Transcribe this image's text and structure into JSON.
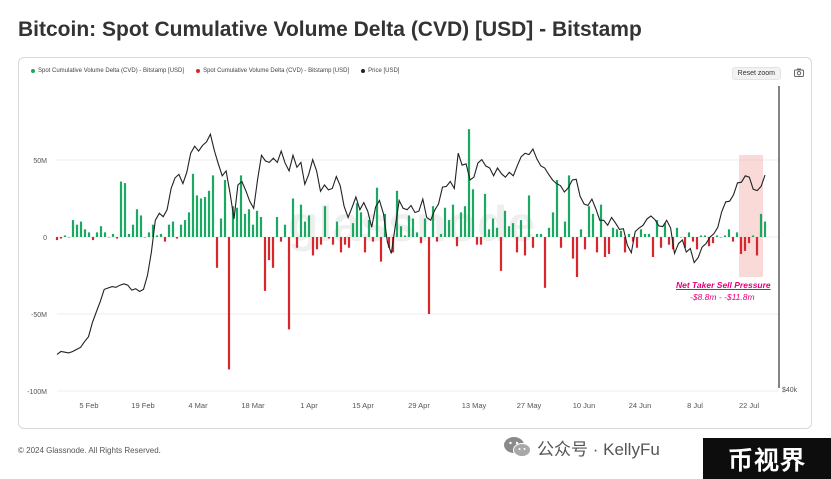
{
  "page": {
    "title": "Bitcoin: Spot Cumulative Volume Delta (CVD) [USD] - Bitstamp",
    "footer": "© 2024 Glassnode. All Rights Reserved.",
    "reset_zoom": "Reset zoom",
    "watermark": "glassnode",
    "wechat_text": "公众号 · KellyFu",
    "brand_text": "币视界"
  },
  "colors": {
    "positive": "#1aa863",
    "negative": "#d7262c",
    "price": "#222222",
    "highlight": "#f6b9b9",
    "annotation": "#e6007e"
  },
  "chart_data": {
    "type": "bar",
    "title": "Bitcoin: Spot Cumulative Volume Delta (CVD) [USD] - Bitstamp",
    "legend": [
      {
        "name": "Spot Cumulative Volume Delta (CVD) - Bitstamp [USD]",
        "color": "#1aa863"
      },
      {
        "name": "Spot Cumulative Volume Delta (CVD) - Bitstamp [USD]",
        "color": "#d7262c"
      },
      {
        "name": "Price [USD]",
        "color": "#222222"
      }
    ],
    "legend_position": "top-left",
    "x_ticks": [
      "5 Feb",
      "19 Feb",
      "4 Mar",
      "18 Mar",
      "1 Apr",
      "15 Apr",
      "29 Apr",
      "13 May",
      "27 May",
      "10 Jun",
      "24 Jun",
      "8 Jul",
      "22 Jul"
    ],
    "y_ticks": [
      "50M",
      "0",
      "-50M",
      "-100M"
    ],
    "ylim": [
      -100,
      60
    ],
    "y_unit": "M USD",
    "right_axis_label": "$40k",
    "price_range": [
      40000,
      75000
    ],
    "x_start_day": 0,
    "bar_spacing_days": 1,
    "cvd_values": [
      -2,
      -1,
      1,
      0,
      11,
      8,
      10,
      5,
      3,
      -2,
      3,
      7,
      3,
      0,
      2,
      -1,
      36,
      35,
      2,
      8,
      18,
      14,
      0,
      3,
      8,
      1,
      2,
      -3,
      8,
      10,
      -1,
      8,
      11,
      16,
      41,
      27,
      25,
      26,
      30,
      40,
      -20,
      12,
      37,
      -86,
      20,
      19,
      40,
      15,
      18,
      8,
      17,
      13,
      -35,
      -15,
      -20,
      13,
      -3,
      8,
      -60,
      25,
      -7,
      21,
      10,
      14,
      -12,
      -8,
      -5,
      20,
      -1,
      -5,
      10,
      -10,
      -5,
      -7,
      9,
      22,
      16,
      -10,
      11,
      -3,
      32,
      -16,
      15,
      -7,
      -10,
      30,
      7,
      1,
      14,
      12,
      3,
      -4,
      12,
      -50,
      20,
      -3,
      2,
      19,
      11,
      21,
      -6,
      16,
      20,
      70,
      31,
      -5,
      -5,
      28,
      5,
      12,
      6,
      -22,
      17,
      7,
      9,
      -10,
      11,
      -12,
      27,
      -7,
      2,
      2,
      -33,
      6,
      16,
      37,
      -7,
      10,
      40,
      -14,
      -26,
      5,
      -8,
      20,
      15,
      -10,
      21,
      -13,
      -11,
      6,
      5,
      4,
      -10,
      2,
      -3,
      -7,
      5,
      2,
      2,
      -13,
      11,
      -7,
      9,
      -5,
      -8,
      6,
      0,
      -7,
      3,
      -3,
      -8,
      1,
      1,
      -6,
      -4,
      1,
      0,
      1,
      5,
      -3,
      3,
      -11,
      -9,
      -4,
      1,
      -12,
      15,
      10
    ],
    "price_values": [
      42500,
      42900,
      42800,
      42700,
      42900,
      43200,
      43500,
      44300,
      45000,
      47000,
      48500,
      50000,
      51700,
      51900,
      52100,
      52000,
      52300,
      52500,
      52300,
      51600,
      51800,
      51400,
      51700,
      53700,
      57000,
      61500,
      62500,
      62000,
      63000,
      66000,
      67500,
      68000,
      66700,
      68300,
      71000,
      72000,
      71300,
      72100,
      72600,
      73700,
      71400,
      69500,
      67800,
      68500,
      65300,
      61700,
      66500,
      67000,
      65700,
      64200,
      63200,
      67300,
      70700,
      69900,
      69700,
      70300,
      69700,
      71300,
      69600,
      68500,
      70700,
      69000,
      69700,
      66600,
      68000,
      70100,
      68500,
      65600,
      66500,
      65800,
      66000,
      67700,
      66400,
      63500,
      61900,
      63300,
      64800,
      63000,
      64000,
      62800,
      60500,
      63400,
      64300,
      62400,
      58400,
      56800,
      60700,
      64300,
      63200,
      63000,
      63600,
      62600,
      62800,
      64500,
      61900,
      61500,
      62900,
      63800,
      66200,
      66300,
      67000,
      66000,
      71000,
      69300,
      69500,
      67200,
      67600,
      69600,
      70100,
      69200,
      68900,
      67800,
      68900,
      68100,
      67600,
      68300,
      67800,
      69200,
      70500,
      71000,
      70800,
      71600,
      70200,
      69200,
      68900,
      68000,
      67200,
      66700,
      66400,
      65500,
      66100,
      67200,
      67300,
      64900,
      63800,
      63600,
      64500,
      63100,
      61500,
      61500,
      60800,
      61900,
      61100,
      60200,
      60300,
      58000,
      56900,
      59900,
      60400,
      60800,
      61700,
      62100,
      61600,
      60700,
      60600,
      61500,
      60400,
      56800,
      58200,
      58700,
      57000,
      57500,
      55500,
      56200,
      57700,
      58200,
      59100,
      59600,
      60500,
      62700,
      64100,
      64200,
      65100,
      66800,
      66900,
      67800,
      67600,
      65900,
      65700,
      66300,
      67900
    ]
  },
  "annotation": {
    "title": "Net Taker Sell Pressure",
    "range": "-$8.8m - -$11.8m"
  }
}
